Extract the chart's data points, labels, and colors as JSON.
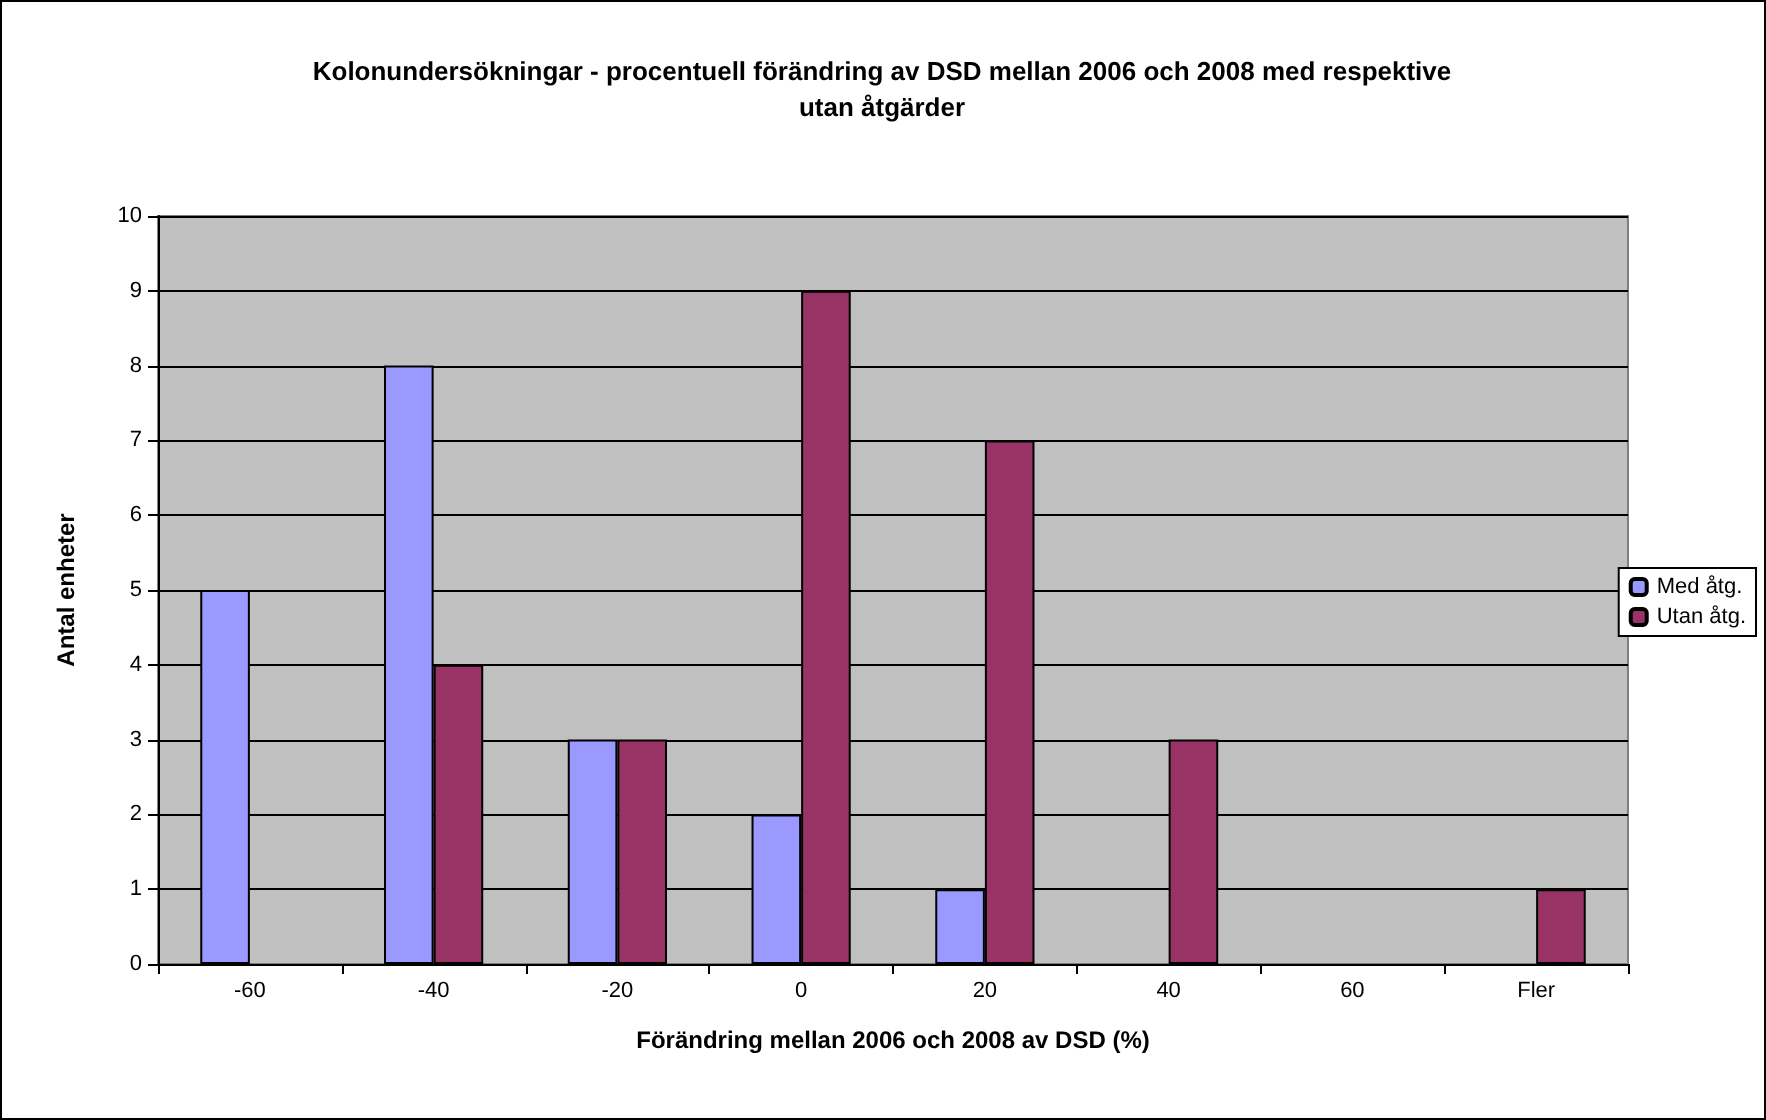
{
  "chart_data": {
    "type": "bar",
    "title": "Kolonundersökningar - procentuell förändring av DSD mellan 2006 och 2008 med respektive utan åtgärder",
    "xlabel": "Förändring mellan 2006 och 2008 av DSD (%)",
    "ylabel": "Antal enheter",
    "categories": [
      "-60",
      "-40",
      "-20",
      "0",
      "20",
      "40",
      "60",
      "Fler"
    ],
    "series": [
      {
        "name": "Med åtg.",
        "color": "#9999ff",
        "values": [
          5,
          8,
          3,
          2,
          1,
          0,
          0,
          0
        ]
      },
      {
        "name": "Utan åtg.",
        "color": "#993366",
        "values": [
          0,
          4,
          3,
          9,
          7,
          3,
          0,
          1
        ]
      }
    ],
    "ylim": [
      0,
      10
    ],
    "yticks": [
      0,
      1,
      2,
      3,
      4,
      5,
      6,
      7,
      8,
      9,
      10
    ],
    "grid": "y",
    "legend": "right"
  }
}
